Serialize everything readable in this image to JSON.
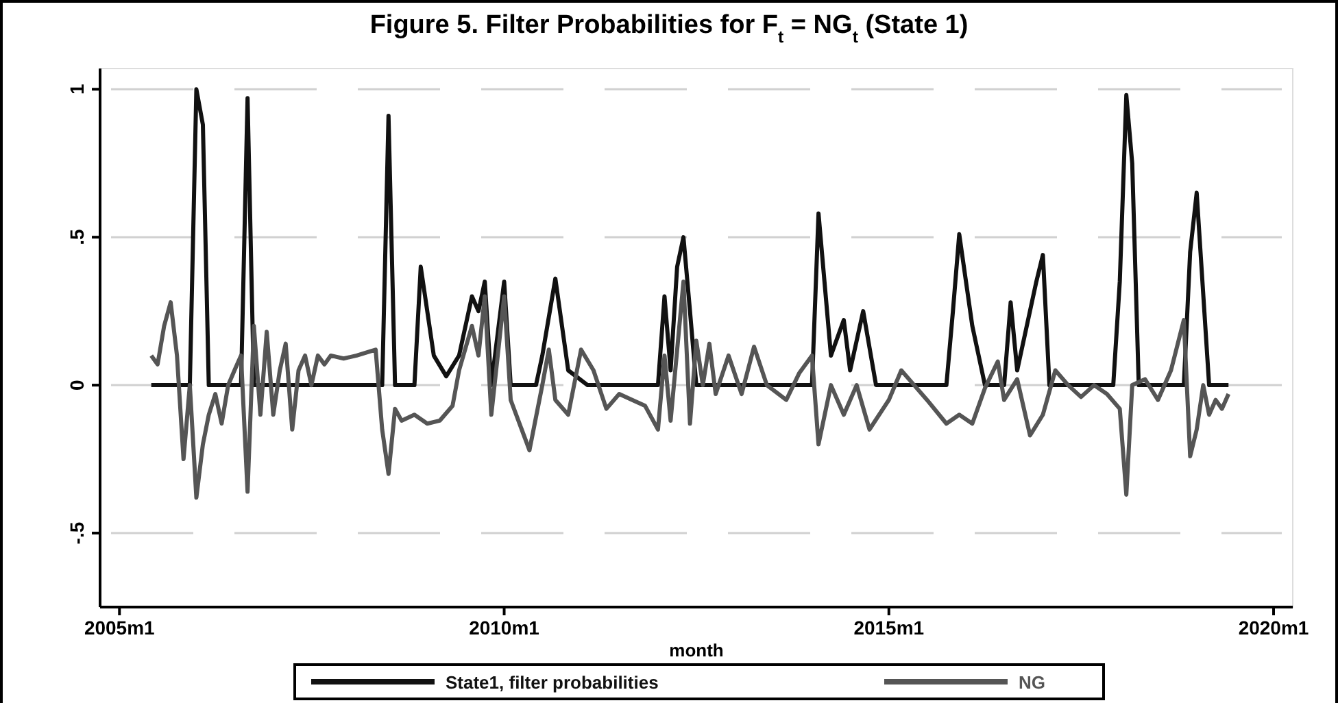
{
  "chart_data": {
    "type": "line",
    "title": "Figure 5. Filter Probabilities for F$_{t}$ = NG$_{t}$ (State 1)",
    "xlabel": "month",
    "x": [
      "2005-06",
      "2005-11",
      "2005-12",
      "2006-01",
      "2006-02",
      "2006-03",
      "2006-08",
      "2006-09",
      "2006-10",
      "2008-06",
      "2008-07",
      "2008-08",
      "2008-11",
      "2008-12",
      "2009-02",
      "2009-04",
      "2009-06",
      "2009-08",
      "2009-09",
      "2009-10",
      "2009-11",
      "2010-01",
      "2010-02",
      "2010-06",
      "2010-07",
      "2010-09",
      "2010-11",
      "2011-02",
      "2012-01",
      "2012-02",
      "2012-03",
      "2012-04",
      "2012-05",
      "2012-06",
      "2012-07",
      "2014-01",
      "2014-02",
      "2014-04",
      "2014-06",
      "2014-07",
      "2014-09",
      "2014-11",
      "2015-10",
      "2015-11",
      "2015-12",
      "2016-02",
      "2016-04",
      "2016-07",
      "2016-08",
      "2016-09",
      "2016-12",
      "2017-01",
      "2017-02",
      "2017-12",
      "2018-01",
      "2018-02",
      "2018-03",
      "2018-04",
      "2018-11",
      "2018-12",
      "2019-01",
      "2019-03",
      "2019-06"
    ],
    "series": [
      {
        "name": "State1, filter probabilities",
        "color": "#111111",
        "values": [
          0,
          0,
          0,
          1.0,
          0.88,
          0,
          0,
          0.97,
          0,
          0,
          0.91,
          0,
          0,
          0.4,
          0.1,
          0.03,
          0.1,
          0.3,
          0.25,
          0.35,
          0,
          0.35,
          0,
          0,
          0.1,
          0.36,
          0.05,
          0,
          0,
          0.3,
          0.05,
          0.4,
          0.5,
          0.25,
          0,
          0,
          0.58,
          0.1,
          0.22,
          0.05,
          0.25,
          0,
          0,
          0.25,
          0.51,
          0.2,
          0,
          0,
          0.28,
          0.05,
          0.35,
          0.44,
          0,
          0,
          0.35,
          0.98,
          0.75,
          0,
          0,
          0.45,
          0.65,
          0,
          0
        ]
      },
      {
        "name": "NG",
        "color": "#555555",
        "x": [
          "2005-06",
          "2005-07",
          "2005-08",
          "2005-09",
          "2005-10",
          "2005-11",
          "2005-12",
          "2006-01",
          "2006-02",
          "2006-03",
          "2006-04",
          "2006-05",
          "2006-06",
          "2006-07",
          "2006-08",
          "2006-09",
          "2006-10",
          "2006-11",
          "2006-12",
          "2007-01",
          "2007-02",
          "2007-03",
          "2007-04",
          "2007-05",
          "2007-06",
          "2007-07",
          "2007-08",
          "2007-09",
          "2007-10",
          "2007-12",
          "2008-02",
          "2008-05",
          "2008-06",
          "2008-07",
          "2008-08",
          "2008-09",
          "2008-11",
          "2009-01",
          "2009-03",
          "2009-05",
          "2009-06",
          "2009-08",
          "2009-09",
          "2009-10",
          "2009-11",
          "2010-01",
          "2010-02",
          "2010-05",
          "2010-07",
          "2010-08",
          "2010-09",
          "2010-11",
          "2011-01",
          "2011-03",
          "2011-05",
          "2011-07",
          "2011-09",
          "2011-11",
          "2012-01",
          "2012-02",
          "2012-03",
          "2012-05",
          "2012-06",
          "2012-07",
          "2012-08",
          "2012-09",
          "2012-10",
          "2012-12",
          "2013-02",
          "2013-04",
          "2013-06",
          "2013-09",
          "2013-11",
          "2014-01",
          "2014-02",
          "2014-04",
          "2014-06",
          "2014-08",
          "2014-10",
          "2015-01",
          "2015-03",
          "2015-05",
          "2015-07",
          "2015-10",
          "2015-12",
          "2016-02",
          "2016-04",
          "2016-06",
          "2016-07",
          "2016-09",
          "2016-11",
          "2017-01",
          "2017-03",
          "2017-05",
          "2017-07",
          "2017-09",
          "2017-11",
          "2018-01",
          "2018-02",
          "2018-03",
          "2018-05",
          "2018-07",
          "2018-09",
          "2018-11",
          "2018-12",
          "2019-01",
          "2019-02",
          "2019-03",
          "2019-04",
          "2019-05",
          "2019-06"
        ],
        "values": [
          0.1,
          0.07,
          0.2,
          0.28,
          0.1,
          -0.25,
          0,
          -0.38,
          -0.2,
          -0.1,
          -0.03,
          -0.13,
          0,
          0.05,
          0.1,
          -0.36,
          0.2,
          -0.1,
          0.18,
          -0.1,
          0.05,
          0.14,
          -0.15,
          0.05,
          0.1,
          0,
          0.1,
          0.07,
          0.1,
          0.09,
          0.1,
          0.12,
          -0.15,
          -0.3,
          -0.08,
          -0.12,
          -0.1,
          -0.13,
          -0.12,
          -0.07,
          0.05,
          0.2,
          0.1,
          0.3,
          -0.1,
          0.3,
          -0.05,
          -0.22,
          0,
          0.12,
          -0.05,
          -0.1,
          0.12,
          0.05,
          -0.08,
          -0.03,
          -0.05,
          -0.07,
          -0.15,
          0.1,
          -0.12,
          0.35,
          -0.13,
          0.15,
          0,
          0.14,
          -0.03,
          0.1,
          -0.03,
          0.13,
          0,
          -0.05,
          0.04,
          0.1,
          -0.2,
          0,
          -0.1,
          0,
          -0.15,
          -0.05,
          0.05,
          0,
          -0.05,
          -0.13,
          -0.1,
          -0.13,
          -0.01,
          0.08,
          -0.05,
          0.02,
          -0.17,
          -0.1,
          0.05,
          0,
          -0.04,
          0,
          -0.03,
          -0.08,
          -0.37,
          0,
          0.02,
          -0.05,
          0.05,
          0.22,
          -0.24,
          -0.15,
          0,
          -0.1,
          -0.05,
          -0.08,
          -0.03
        ]
      }
    ],
    "xlim": [
      "2004-10",
      "2020-04"
    ],
    "xticks": [
      {
        "value": "2005-01",
        "label": "2005m1"
      },
      {
        "value": "2010-01",
        "label": "2010m1"
      },
      {
        "value": "2015-01",
        "label": "2015m1"
      },
      {
        "value": "2020-01",
        "label": "2020m1"
      }
    ],
    "ylim": [
      -0.75,
      1.07
    ],
    "yticks": [
      {
        "value": -0.5,
        "label": "-.5"
      },
      {
        "value": 0,
        "label": "0"
      },
      {
        "value": 0.5,
        "label": ".5"
      },
      {
        "value": 1,
        "label": "1"
      }
    ],
    "grid": "y",
    "legend": "bottom",
    "line_style": "solid",
    "marker": "none"
  }
}
